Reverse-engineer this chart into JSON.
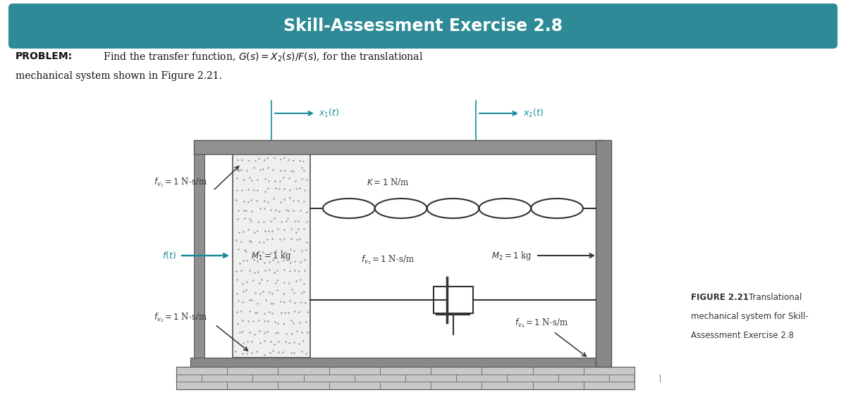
{
  "title": "Skill-Assessment Exercise 2.8",
  "title_bg_color": "#2d8a96",
  "title_text_color": "#ffffff",
  "teal_color": "#1a8a9a",
  "dark_gray": "#606060",
  "mid_gray": "#888888",
  "bg_color": "#ffffff",
  "label_color": "#333333",
  "frame_color": "#777777",
  "wall_color": "#8a8a8a",
  "ground_color": "#aaaaaa",
  "stipple_color": "#aaaaaa",
  "fig21_bold": "FIGURE 2.21",
  "fig21_rest": "   Translational\nmechanical system for Skill-\nAssessment Exercise 2.8"
}
